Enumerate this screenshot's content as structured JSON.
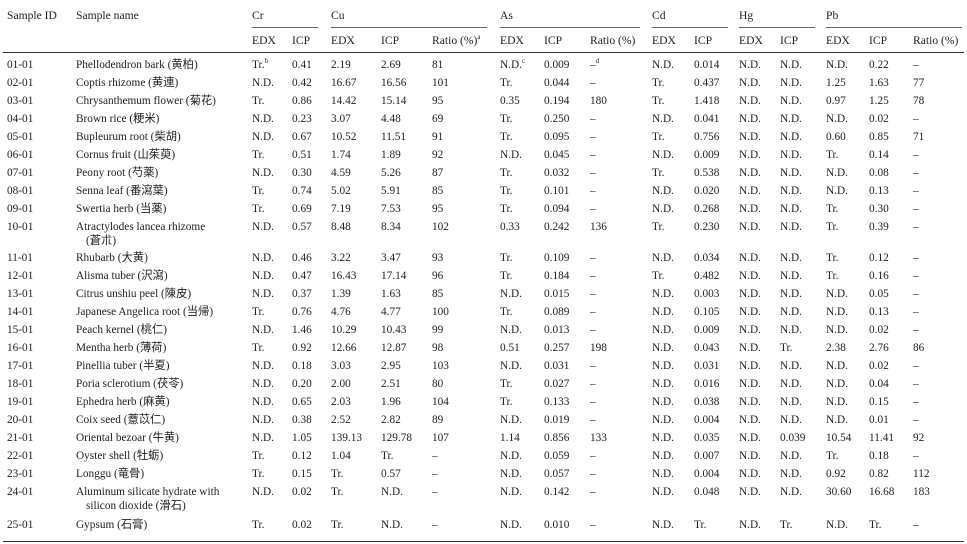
{
  "headers": {
    "sample_id": "Sample ID",
    "sample_name": "Sample name",
    "groups": [
      "Cr",
      "Cu",
      "As",
      "Cd",
      "Hg",
      "Pb"
    ],
    "sub": {
      "edx": "EDX",
      "icp": "ICP",
      "ratio_cu": "Ratio (%)",
      "ratio_cu_sup": "a",
      "ratio": "Ratio (%)"
    }
  },
  "rows": [
    {
      "id": "01-01",
      "name": [
        "Phellodendron bark (黄柏)"
      ],
      "cr_edx": "Tr.",
      "cr_edx_sup": "b",
      "cr_icp": "0.41",
      "cu_edx": "2.19",
      "cu_icp": "2.69",
      "cu_ratio": "81",
      "as_edx": "N.D.",
      "as_edx_sup": "c",
      "as_icp": "0.009",
      "as_ratio": "–",
      "as_ratio_sup": "d",
      "cd_edx": "N.D.",
      "cd_icp": "0.014",
      "hg_edx": "N.D.",
      "hg_icp": "N.D.",
      "pb_edx": "N.D.",
      "pb_icp": "0.22",
      "pb_ratio": "–"
    },
    {
      "id": "02-01",
      "name": [
        "Coptis rhizome (黄連)"
      ],
      "cr_edx": "N.D.",
      "cr_icp": "0.42",
      "cu_edx": "16.67",
      "cu_icp": "16.56",
      "cu_ratio": "101",
      "as_edx": "Tr.",
      "as_icp": "0.044",
      "as_ratio": "–",
      "cd_edx": "Tr.",
      "cd_icp": "0.437",
      "hg_edx": "N.D.",
      "hg_icp": "N.D.",
      "pb_edx": "1.25",
      "pb_icp": "1.63",
      "pb_ratio": "77"
    },
    {
      "id": "03-01",
      "name": [
        "Chrysanthemum flower (菊花)"
      ],
      "cr_edx": "Tr.",
      "cr_icp": "0.86",
      "cu_edx": "14.42",
      "cu_icp": "15.14",
      "cu_ratio": "95",
      "as_edx": "0.35",
      "as_icp": "0.194",
      "as_ratio": "180",
      "cd_edx": "Tr.",
      "cd_icp": "1.418",
      "hg_edx": "N.D.",
      "hg_icp": "N.D.",
      "pb_edx": "0.97",
      "pb_icp": "1.25",
      "pb_ratio": "78"
    },
    {
      "id": "04-01",
      "name": [
        "Brown rice (粳米)"
      ],
      "cr_edx": "N.D.",
      "cr_icp": "0.23",
      "cu_edx": "3.07",
      "cu_icp": "4.48",
      "cu_ratio": "69",
      "as_edx": "Tr.",
      "as_icp": "0.250",
      "as_ratio": "–",
      "cd_edx": "N.D.",
      "cd_icp": "0.041",
      "hg_edx": "N.D.",
      "hg_icp": "N.D.",
      "pb_edx": "N.D.",
      "pb_icp": "0.02",
      "pb_ratio": "–"
    },
    {
      "id": "05-01",
      "name": [
        "Bupleurum root (柴胡)"
      ],
      "cr_edx": "N.D.",
      "cr_icp": "0.67",
      "cu_edx": "10.52",
      "cu_icp": "11.51",
      "cu_ratio": "91",
      "as_edx": "Tr.",
      "as_icp": "0.095",
      "as_ratio": "–",
      "cd_edx": "Tr.",
      "cd_icp": "0.756",
      "hg_edx": "N.D.",
      "hg_icp": "N.D.",
      "pb_edx": "0.60",
      "pb_icp": "0.85",
      "pb_ratio": "71"
    },
    {
      "id": "06-01",
      "name": [
        "Cornus fruit (山茱萸)"
      ],
      "cr_edx": "Tr.",
      "cr_icp": "0.51",
      "cu_edx": "1.74",
      "cu_icp": "1.89",
      "cu_ratio": "92",
      "as_edx": "N.D.",
      "as_icp": "0.045",
      "as_ratio": "–",
      "cd_edx": "N.D.",
      "cd_icp": "0.009",
      "hg_edx": "N.D.",
      "hg_icp": "N.D.",
      "pb_edx": "Tr.",
      "pb_icp": "0.14",
      "pb_ratio": "–"
    },
    {
      "id": "07-01",
      "name": [
        "Peony root (芍薬)"
      ],
      "cr_edx": "N.D.",
      "cr_icp": "0.30",
      "cu_edx": "4.59",
      "cu_icp": "5.26",
      "cu_ratio": "87",
      "as_edx": "Tr.",
      "as_icp": "0.032",
      "as_ratio": "–",
      "cd_edx": "Tr.",
      "cd_icp": "0.538",
      "hg_edx": "N.D.",
      "hg_icp": "N.D.",
      "pb_edx": "N.D.",
      "pb_icp": "0.08",
      "pb_ratio": "–"
    },
    {
      "id": "08-01",
      "name": [
        "Senna leaf (番瀉葉)"
      ],
      "cr_edx": "Tr.",
      "cr_icp": "0.74",
      "cu_edx": "5.02",
      "cu_icp": "5.91",
      "cu_ratio": "85",
      "as_edx": "Tr.",
      "as_icp": "0.101",
      "as_ratio": "–",
      "cd_edx": "N.D.",
      "cd_icp": "0.020",
      "hg_edx": "N.D.",
      "hg_icp": "N.D.",
      "pb_edx": "N.D.",
      "pb_icp": "0.13",
      "pb_ratio": "–"
    },
    {
      "id": "09-01",
      "name": [
        "Swertia herb (当薬)"
      ],
      "cr_edx": "Tr.",
      "cr_icp": "0.69",
      "cu_edx": "7.19",
      "cu_icp": "7.53",
      "cu_ratio": "95",
      "as_edx": "Tr.",
      "as_icp": "0.094",
      "as_ratio": "–",
      "cd_edx": "N.D.",
      "cd_icp": "0.268",
      "hg_edx": "N.D.",
      "hg_icp": "N.D.",
      "pb_edx": "Tr.",
      "pb_icp": "0.30",
      "pb_ratio": "–"
    },
    {
      "id": "10-01",
      "name": [
        "Atractylodes lancea rhizome",
        "(蒼朮)"
      ],
      "cr_edx": "N.D.",
      "cr_icp": "0.57",
      "cu_edx": "8.48",
      "cu_icp": "8.34",
      "cu_ratio": "102",
      "as_edx": "0.33",
      "as_icp": "0.242",
      "as_ratio": "136",
      "cd_edx": "Tr.",
      "cd_icp": "0.230",
      "hg_edx": "N.D.",
      "hg_icp": "N.D.",
      "pb_edx": "Tr.",
      "pb_icp": "0.39",
      "pb_ratio": "–"
    },
    {
      "id": "11-01",
      "name": [
        "Rhubarb (大黄)"
      ],
      "cr_edx": "N.D.",
      "cr_icp": "0.46",
      "cu_edx": "3.22",
      "cu_icp": "3.47",
      "cu_ratio": "93",
      "as_edx": "Tr.",
      "as_icp": "0.109",
      "as_ratio": "–",
      "cd_edx": "N.D.",
      "cd_icp": "0.034",
      "hg_edx": "N.D.",
      "hg_icp": "N.D.",
      "pb_edx": "Tr.",
      "pb_icp": "0.12",
      "pb_ratio": "–"
    },
    {
      "id": "12-01",
      "name": [
        "Alisma tuber (沢瀉)"
      ],
      "cr_edx": "N.D.",
      "cr_icp": "0.47",
      "cu_edx": "16.43",
      "cu_icp": "17.14",
      "cu_ratio": "96",
      "as_edx": "Tr.",
      "as_icp": "0.184",
      "as_ratio": "–",
      "cd_edx": "Tr.",
      "cd_icp": "0.482",
      "hg_edx": "N.D.",
      "hg_icp": "N.D.",
      "pb_edx": "Tr.",
      "pb_icp": "0.16",
      "pb_ratio": "–"
    },
    {
      "id": "13-01",
      "name": [
        "Citrus unshiu peel (陳皮)"
      ],
      "cr_edx": "N.D.",
      "cr_icp": "0.37",
      "cu_edx": "1.39",
      "cu_icp": "1.63",
      "cu_ratio": "85",
      "as_edx": "N.D.",
      "as_icp": "0.015",
      "as_ratio": "–",
      "cd_edx": "N.D.",
      "cd_icp": "0.003",
      "hg_edx": "N.D.",
      "hg_icp": "N.D.",
      "pb_edx": "N.D.",
      "pb_icp": "0.05",
      "pb_ratio": "–"
    },
    {
      "id": "14-01",
      "name": [
        "Japanese Angelica root (当帰)"
      ],
      "cr_edx": "Tr.",
      "cr_icp": "0.76",
      "cu_edx": "4.76",
      "cu_icp": "4.77",
      "cu_ratio": "100",
      "as_edx": "Tr.",
      "as_icp": "0.089",
      "as_ratio": "–",
      "cd_edx": "N.D.",
      "cd_icp": "0.105",
      "hg_edx": "N.D.",
      "hg_icp": "N.D.",
      "pb_edx": "N.D.",
      "pb_icp": "0.13",
      "pb_ratio": "–"
    },
    {
      "id": "15-01",
      "name": [
        "Peach kernel (桃仁)"
      ],
      "cr_edx": "N.D.",
      "cr_icp": "1.46",
      "cu_edx": "10.29",
      "cu_icp": "10.43",
      "cu_ratio": "99",
      "as_edx": "N.D.",
      "as_icp": "0.013",
      "as_ratio": "–",
      "cd_edx": "N.D.",
      "cd_icp": "0.009",
      "hg_edx": "N.D.",
      "hg_icp": "N.D.",
      "pb_edx": "N.D.",
      "pb_icp": "0.02",
      "pb_ratio": "–"
    },
    {
      "id": "16-01",
      "name": [
        "Mentha herb (薄荷)"
      ],
      "cr_edx": "Tr.",
      "cr_icp": "0.92",
      "cu_edx": "12.66",
      "cu_icp": "12.87",
      "cu_ratio": "98",
      "as_edx": "0.51",
      "as_icp": "0.257",
      "as_ratio": "198",
      "cd_edx": "N.D.",
      "cd_icp": "0.043",
      "hg_edx": "N.D.",
      "hg_icp": "Tr.",
      "pb_edx": "2.38",
      "pb_icp": "2.76",
      "pb_ratio": "86"
    },
    {
      "id": "17-01",
      "name": [
        "Pinellia tuber (半夏)"
      ],
      "cr_edx": "N.D.",
      "cr_icp": "0.18",
      "cu_edx": "3.03",
      "cu_icp": "2.95",
      "cu_ratio": "103",
      "as_edx": "N.D.",
      "as_icp": "0.031",
      "as_ratio": "–",
      "cd_edx": "N.D.",
      "cd_icp": "0.031",
      "hg_edx": "N.D.",
      "hg_icp": "N.D.",
      "pb_edx": "N.D.",
      "pb_icp": "0.02",
      "pb_ratio": "–"
    },
    {
      "id": "18-01",
      "name": [
        "Poria sclerotium (茯苓)"
      ],
      "cr_edx": "N.D.",
      "cr_icp": "0.20",
      "cu_edx": "2.00",
      "cu_icp": "2.51",
      "cu_ratio": "80",
      "as_edx": "Tr.",
      "as_icp": "0.027",
      "as_ratio": "–",
      "cd_edx": "N.D.",
      "cd_icp": "0.016",
      "hg_edx": "N.D.",
      "hg_icp": "N.D.",
      "pb_edx": "N.D.",
      "pb_icp": "0.04",
      "pb_ratio": "–"
    },
    {
      "id": "19-01",
      "name": [
        "Ephedra herb (麻黄)"
      ],
      "cr_edx": "N.D.",
      "cr_icp": "0.65",
      "cu_edx": "2.03",
      "cu_icp": "1.96",
      "cu_ratio": "104",
      "as_edx": "Tr.",
      "as_icp": "0.133",
      "as_ratio": "–",
      "cd_edx": "N.D.",
      "cd_icp": "0.038",
      "hg_edx": "N.D.",
      "hg_icp": "N.D.",
      "pb_edx": "N.D.",
      "pb_icp": "0.15",
      "pb_ratio": "–"
    },
    {
      "id": "20-01",
      "name": [
        "Coix seed (薏苡仁)"
      ],
      "cr_edx": "N.D.",
      "cr_icp": "0.38",
      "cu_edx": "2.52",
      "cu_icp": "2.82",
      "cu_ratio": "89",
      "as_edx": "N.D.",
      "as_icp": "0.019",
      "as_ratio": "–",
      "cd_edx": "N.D.",
      "cd_icp": "0.004",
      "hg_edx": "N.D.",
      "hg_icp": "N.D.",
      "pb_edx": "N.D.",
      "pb_icp": "0.01",
      "pb_ratio": "–"
    },
    {
      "id": "21-01",
      "name": [
        "Oriental bezoar (牛黄)"
      ],
      "cr_edx": "N.D.",
      "cr_icp": "1.05",
      "cu_edx": "139.13",
      "cu_icp": "129.78",
      "cu_ratio": "107",
      "as_edx": "1.14",
      "as_icp": "0.856",
      "as_ratio": "133",
      "cd_edx": "N.D.",
      "cd_icp": "0.035",
      "hg_edx": "N.D.",
      "hg_icp": "0.039",
      "pb_edx": "10.54",
      "pb_icp": "11.41",
      "pb_ratio": "92"
    },
    {
      "id": "22-01",
      "name": [
        "Oyster shell (牡蛎)"
      ],
      "cr_edx": "Tr.",
      "cr_icp": "0.12",
      "cu_edx": "1.04",
      "cu_icp": "Tr.",
      "cu_ratio": "–",
      "as_edx": "N.D.",
      "as_icp": "0.059",
      "as_ratio": "–",
      "cd_edx": "N.D.",
      "cd_icp": "0.007",
      "hg_edx": "N.D.",
      "hg_icp": "N.D.",
      "pb_edx": "Tr.",
      "pb_icp": "0.18",
      "pb_ratio": "–"
    },
    {
      "id": "23-01",
      "name": [
        "Longgu (竜骨)"
      ],
      "cr_edx": "Tr.",
      "cr_icp": "0.15",
      "cu_edx": "Tr.",
      "cu_icp": "0.57",
      "cu_ratio": "–",
      "as_edx": "N.D.",
      "as_icp": "0.057",
      "as_ratio": "–",
      "cd_edx": "N.D.",
      "cd_icp": "0.004",
      "hg_edx": "N.D.",
      "hg_icp": "N.D.",
      "pb_edx": "0.92",
      "pb_icp": "0.82",
      "pb_ratio": "112"
    },
    {
      "id": "24-01",
      "name": [
        "Aluminum silicate hydrate with",
        "silicon dioxide (滑石)"
      ],
      "cr_edx": "N.D.",
      "cr_icp": "0.02",
      "cu_edx": "Tr.",
      "cu_icp": "N.D.",
      "cu_ratio": "–",
      "as_edx": "N.D.",
      "as_icp": "0.142",
      "as_ratio": "–",
      "cd_edx": "N.D.",
      "cd_icp": "0.048",
      "hg_edx": "N.D.",
      "hg_icp": "N.D.",
      "pb_edx": "30.60",
      "pb_icp": "16.68",
      "pb_ratio": "183"
    },
    {
      "id": "25-01",
      "name": [
        "Gypsum (石膏)"
      ],
      "cr_edx": "Tr.",
      "cr_icp": "0.02",
      "cu_edx": "Tr.",
      "cu_icp": "N.D.",
      "cu_ratio": "–",
      "as_edx": "N.D.",
      "as_icp": "0.010",
      "as_ratio": "–",
      "cd_edx": "N.D.",
      "cd_icp": "Tr.",
      "hg_edx": "N.D.",
      "hg_icp": "Tr.",
      "pb_edx": "N.D.",
      "pb_icp": "Tr.",
      "pb_ratio": "–"
    }
  ]
}
